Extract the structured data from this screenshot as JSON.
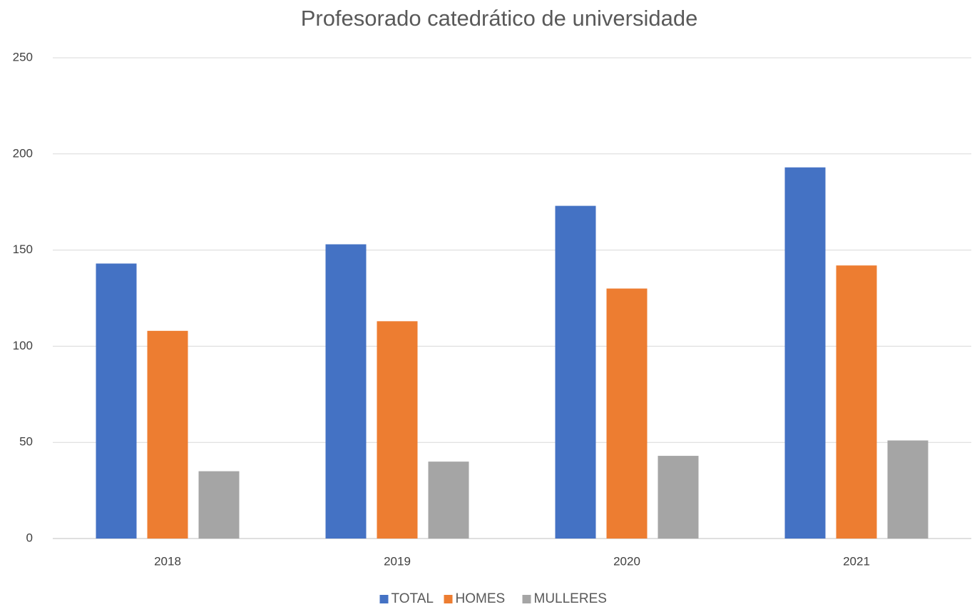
{
  "chart_data": {
    "type": "bar",
    "title": "Profesorado catedrático de universidade",
    "categories": [
      "2018",
      "2019",
      "2020",
      "2021"
    ],
    "series": [
      {
        "name": "TOTAL",
        "color": "#4472c4",
        "values": [
          143,
          153,
          173,
          193
        ]
      },
      {
        "name": "HOMES",
        "color": "#ed7d31",
        "values": [
          108,
          113,
          130,
          142
        ]
      },
      {
        "name": "MULLERES",
        "color": "#a5a5a5",
        "values": [
          35,
          40,
          43,
          51
        ]
      }
    ],
    "ylim": [
      0,
      250
    ],
    "yticks": [
      0,
      50,
      100,
      150,
      200,
      250
    ],
    "grid": true,
    "legend": "bottom"
  }
}
